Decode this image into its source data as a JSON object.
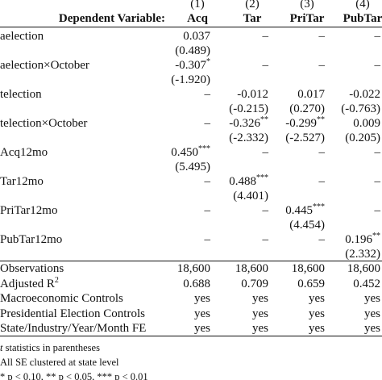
{
  "header": {
    "numbers": [
      "(1)",
      "(2)",
      "(3)",
      "(4)"
    ],
    "label": "Dependent Variable:",
    "columns": [
      "Acq",
      "Tar",
      "PriTar",
      "PubTar"
    ]
  },
  "rows": [
    {
      "label": "aelection",
      "coef": [
        {
          "value": "0.037"
        },
        "–",
        "–",
        "–"
      ],
      "se": [
        "(0.489)",
        null,
        null,
        null
      ]
    },
    {
      "label": "aelection×October",
      "coef": [
        {
          "value": "-0.307",
          "stars": "*"
        },
        "–",
        "–",
        "–"
      ],
      "se": [
        "(-1.920)",
        null,
        null,
        null
      ]
    },
    {
      "label": "telection",
      "coef": [
        "–",
        {
          "value": "-0.012"
        },
        {
          "value": "0.017"
        },
        {
          "value": "-0.022"
        }
      ],
      "se": [
        null,
        "(-0.215)",
        "(0.270)",
        "(-0.763)"
      ]
    },
    {
      "label": "telection×October",
      "coef": [
        "–",
        {
          "value": "-0.326",
          "stars": "**"
        },
        {
          "value": "-0.299",
          "stars": "**"
        },
        {
          "value": "0.009"
        }
      ],
      "se": [
        null,
        "(-2.332)",
        "(-2.527)",
        "(0.205)"
      ]
    },
    {
      "label": "Acq12mo",
      "coef": [
        {
          "value": "0.450",
          "stars": "***"
        },
        "–",
        "–",
        "–"
      ],
      "se": [
        "(5.495)",
        null,
        null,
        null
      ]
    },
    {
      "label": "Tar12mo",
      "coef": [
        "–",
        {
          "value": "0.488",
          "stars": "***"
        },
        "–",
        "–"
      ],
      "se": [
        null,
        "(4.401)",
        null,
        null
      ]
    },
    {
      "label": "PriTar12mo",
      "coef": [
        "–",
        "–",
        {
          "value": "0.445",
          "stars": "***"
        },
        "–"
      ],
      "se": [
        null,
        null,
        "(4.454)",
        null
      ]
    },
    {
      "label": "PubTar12mo",
      "coef": [
        "–",
        "–",
        "–",
        {
          "value": "0.196",
          "stars": "**"
        }
      ],
      "se": [
        null,
        null,
        null,
        "(2.332)"
      ]
    }
  ],
  "stats": [
    {
      "label": "Observations",
      "values": [
        "18,600",
        "18,600",
        "18,600",
        "18,600"
      ]
    },
    {
      "label": "Adjusted R",
      "sup": "2",
      "values": [
        "0.688",
        "0.709",
        "0.659",
        "0.452"
      ]
    },
    {
      "label": "Macroeconomic Controls",
      "values": [
        "yes",
        "yes",
        "yes",
        "yes"
      ]
    },
    {
      "label": "Presidential Election Controls",
      "values": [
        "yes",
        "yes",
        "yes",
        "yes"
      ]
    },
    {
      "label": "State/Industry/Year/Month FE",
      "values": [
        "yes",
        "yes",
        "yes",
        "yes"
      ]
    }
  ],
  "notes": [
    {
      "sym": "t",
      "text": " statistics in parentheses"
    },
    {
      "text": "All SE clustered at state level"
    },
    {
      "text": "* p < 0.10, ** p < 0.05, *** p < 0.01"
    }
  ]
}
